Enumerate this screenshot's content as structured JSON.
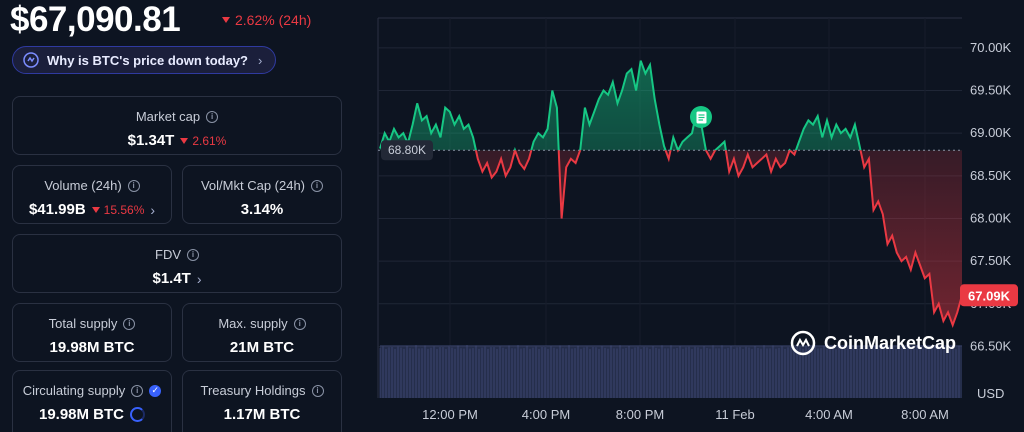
{
  "price": {
    "value": "$67,090.81",
    "change": "2.62% (24h)"
  },
  "why_pill": {
    "label": "Why is BTC's price down today?",
    "chevron": "›"
  },
  "stats": {
    "market_cap": {
      "label": "Market cap",
      "value": "$1.34T",
      "change": "2.61%"
    },
    "volume": {
      "label": "Volume (24h)",
      "value": "$41.99B",
      "change": "15.56%"
    },
    "vol_mkt": {
      "label": "Vol/Mkt Cap (24h)",
      "value": "3.14%"
    },
    "fdv": {
      "label": "FDV",
      "value": "$1.4T"
    },
    "total_supply": {
      "label": "Total supply",
      "value": "19.98M BTC"
    },
    "max_supply": {
      "label": "Max. supply",
      "value": "21M BTC"
    },
    "circulating_supply": {
      "label": "Circulating supply",
      "value": "19.98M BTC"
    },
    "treasury": {
      "label": "Treasury Holdings",
      "value": "1.17M BTC"
    }
  },
  "colors": {
    "up": "#16c784",
    "down": "#ea3943",
    "accent": "#3861fb",
    "background": "#0d1421"
  },
  "chart_data": {
    "type": "line",
    "baseline": 68800,
    "baseline_label": "68.80K",
    "current_label": "67.09K",
    "y_ticks": [
      "70.00K",
      "69.50K",
      "69.00K",
      "68.50K",
      "68.00K",
      "67.50K",
      "67.00K",
      "66.50K"
    ],
    "y_tick_values": [
      70000,
      69500,
      69000,
      68500,
      68000,
      67500,
      67000,
      66500
    ],
    "ylim": [
      66400,
      70350
    ],
    "x_ticks": [
      "12:00 PM",
      "4:00 PM",
      "8:00 PM",
      "11 Feb",
      "4:00 AM",
      "8:00 AM"
    ],
    "y_unit": "USD",
    "watermark": "CoinMarketCap",
    "grid": true,
    "series": [
      {
        "values": [
          68820,
          69000,
          68900,
          69050,
          68950,
          69000,
          68880,
          69100,
          69350,
          69150,
          69200,
          69000,
          69100,
          68950,
          69300,
          69250,
          69100,
          69200,
          69050,
          69100,
          68950,
          68700,
          68550,
          68650,
          68480,
          68550,
          68700,
          68500,
          68600,
          68800,
          68650,
          68580,
          68700,
          68900,
          69000,
          68950,
          69050,
          69500,
          69300,
          68000,
          68600,
          68700,
          68650,
          68800,
          69300,
          69100,
          69250,
          69400,
          69500,
          69450,
          69600,
          69350,
          69500,
          69700,
          69750,
          69500,
          69850,
          69700,
          69800,
          69400,
          69100,
          68850,
          68700,
          68950,
          68800,
          68900,
          68950,
          69000,
          69250,
          69100,
          68800,
          68700,
          68800,
          68850,
          68900,
          68550,
          68700,
          68500,
          68600,
          68750,
          68600,
          68650,
          68700,
          68750,
          68550,
          68700,
          68600,
          68650,
          68800,
          68750,
          68900,
          69050,
          69150,
          69100,
          69200,
          68950,
          69150,
          68950,
          69100,
          69000,
          69050,
          68950,
          69100,
          68850,
          68600,
          68700,
          68100,
          68200,
          68050,
          67700,
          67800,
          67600,
          67500,
          67550,
          67400,
          67600,
          67450,
          67300,
          67350,
          66900,
          67000,
          66800,
          66900,
          66750,
          66900,
          67100
        ]
      }
    ]
  }
}
